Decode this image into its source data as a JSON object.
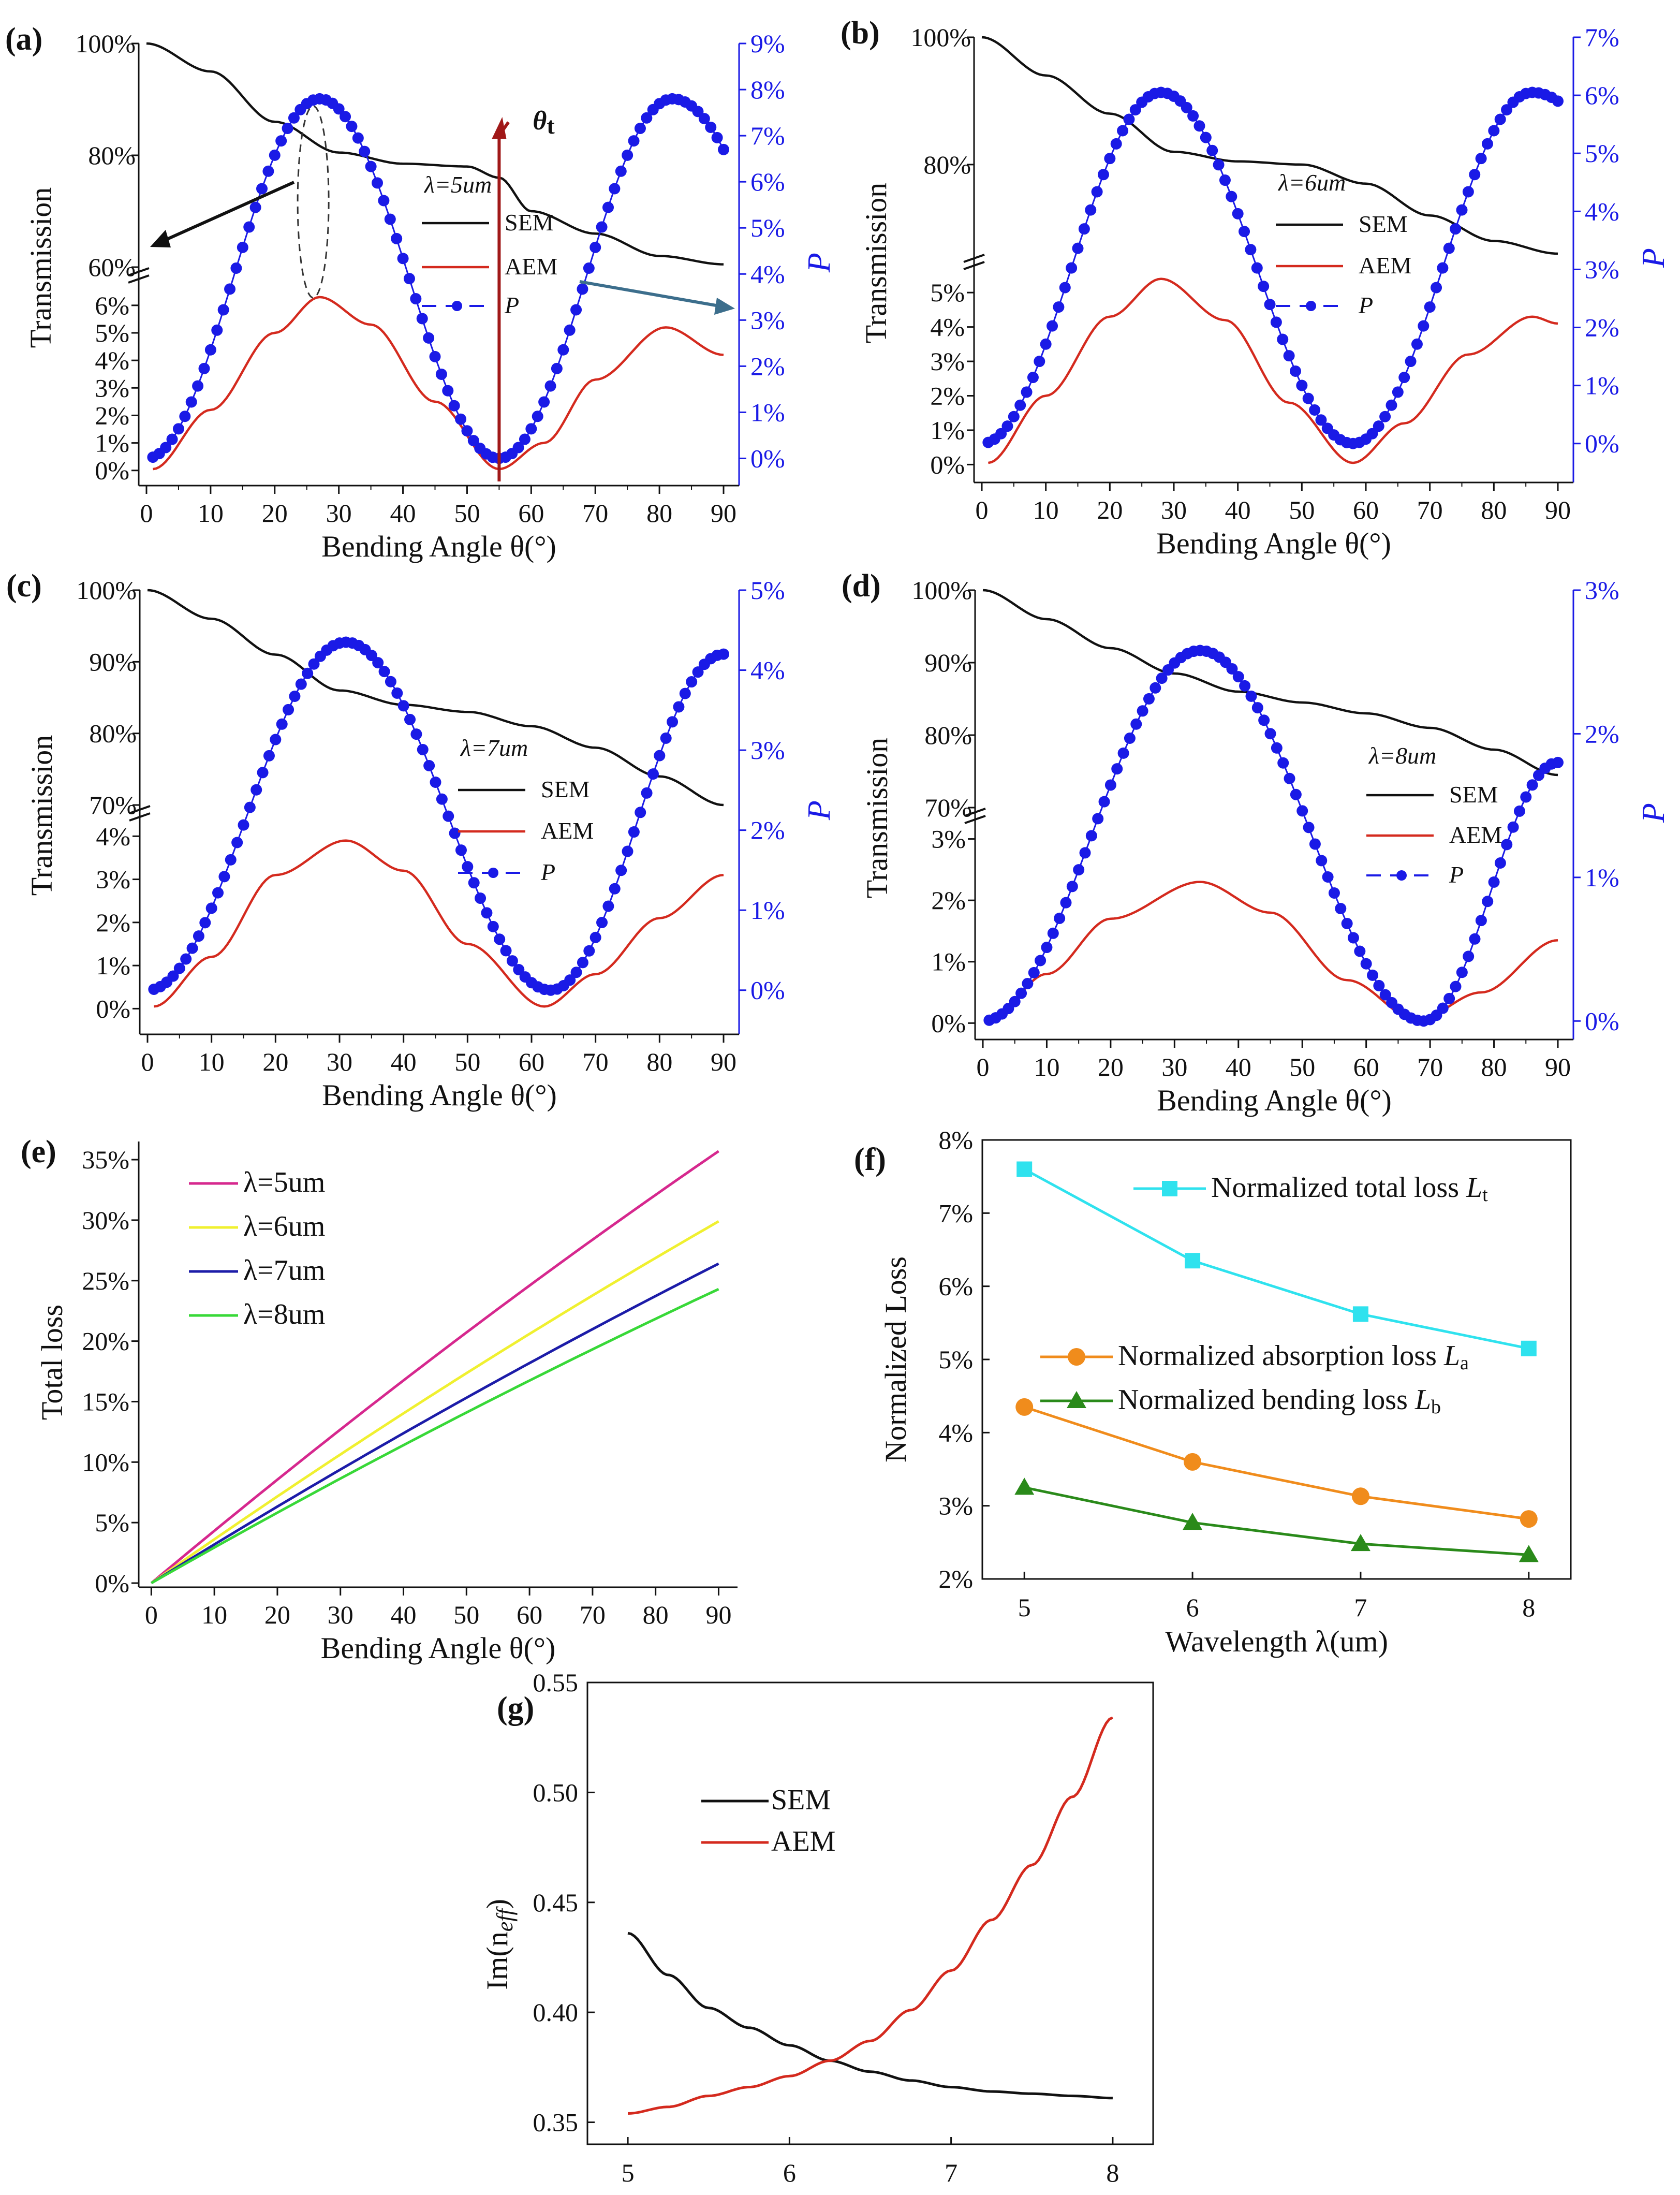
{
  "colors": {
    "sem": "#111111",
    "aem": "#d42a1e",
    "p": "#1a1ae6",
    "l5": "#d6288e",
    "l6": "#f0f030",
    "l7": "#1c1ca8",
    "l8": "#38d838",
    "total": "#2fe2ee",
    "absorp": "#f08c1c",
    "bend": "#2a8a1a",
    "arrowred": "#a01818",
    "arrowgray": "#3c6e8c"
  },
  "chart_data": [
    {
      "id": "a",
      "type": "line",
      "panel_label": "(a)",
      "wavelength_label": "λ=5um",
      "xlabel": "Bending Angle θ(°)",
      "ylabel": "Transmission",
      "y2label": "P",
      "xticks": [
        "0",
        "10",
        "20",
        "30",
        "40",
        "50",
        "60",
        "70",
        "80",
        "90"
      ],
      "yticks_upper": [
        "60%",
        "80%",
        "100%"
      ],
      "yticks_lower": [
        "0%",
        "1%",
        "2%",
        "3%",
        "4%",
        "5%",
        "6%"
      ],
      "y2ticks": [
        "0%",
        "1%",
        "2%",
        "3%",
        "4%",
        "5%",
        "6%",
        "7%",
        "8%",
        "9%"
      ],
      "y2range": [
        -0.5,
        9
      ],
      "legend": [
        "SEM",
        "AEM",
        "P"
      ],
      "theta_label": "θt",
      "series": {
        "SEM": [
          [
            0,
            100
          ],
          [
            10,
            95
          ],
          [
            20,
            86
          ],
          [
            30,
            80.5
          ],
          [
            40,
            78.5
          ],
          [
            50,
            78
          ],
          [
            55,
            76
          ],
          [
            60,
            70
          ],
          [
            70,
            66
          ],
          [
            80,
            62
          ],
          [
            90,
            60.5
          ]
        ],
        "AEM": [
          [
            1,
            0.05
          ],
          [
            10,
            2.2
          ],
          [
            20,
            5
          ],
          [
            27,
            6.3
          ],
          [
            35,
            5.3
          ],
          [
            45,
            2.5
          ],
          [
            55,
            0.05
          ],
          [
            62,
            1
          ],
          [
            70,
            3.3
          ],
          [
            81,
            5.2
          ],
          [
            90,
            4.2
          ]
        ],
        "P": {
          "min": 0,
          "max": 7.8,
          "peak1": 27,
          "trough": 55,
          "peak2": 82,
          "end": 90,
          "end_value": 6.7
        }
      }
    },
    {
      "id": "b",
      "type": "line",
      "panel_label": "(b)",
      "wavelength_label": "λ=6um",
      "xlabel": "Bending Angle θ(°)",
      "ylabel": "Transmission",
      "y2label": "P",
      "xticks": [
        "0",
        "10",
        "20",
        "30",
        "40",
        "50",
        "60",
        "70",
        "80",
        "90"
      ],
      "yticks_upper": [
        "80%",
        "100%"
      ],
      "yticks_lower": [
        "0%",
        "1%",
        "2%",
        "3%",
        "4%",
        "5%"
      ],
      "y2ticks": [
        "0%",
        "1%",
        "2%",
        "3%",
        "4%",
        "5%",
        "6%",
        "7%"
      ],
      "y2range": [
        -0.6,
        7
      ],
      "legend": [
        "SEM",
        "AEM",
        "P"
      ],
      "series": {
        "SEM": [
          [
            0,
            100
          ],
          [
            10,
            94
          ],
          [
            20,
            88
          ],
          [
            30,
            82
          ],
          [
            40,
            80.5
          ],
          [
            50,
            80
          ],
          [
            60,
            77
          ],
          [
            70,
            72
          ],
          [
            80,
            68
          ],
          [
            90,
            66
          ]
        ],
        "AEM": [
          [
            1,
            0.05
          ],
          [
            10,
            2
          ],
          [
            20,
            4.3
          ],
          [
            28,
            5.4
          ],
          [
            38,
            4.2
          ],
          [
            48,
            1.8
          ],
          [
            58,
            0.05
          ],
          [
            66,
            1.2
          ],
          [
            76,
            3.2
          ],
          [
            86,
            4.3
          ],
          [
            90,
            4.1
          ]
        ],
        "P": {
          "min": 0,
          "max": 6.05,
          "peak1": 28,
          "trough": 58,
          "peak2": 86,
          "end": 90,
          "end_value": 5.9
        }
      }
    },
    {
      "id": "c",
      "type": "line",
      "panel_label": "(c)",
      "wavelength_label": "λ=7um",
      "xlabel": "Bending Angle θ(°)",
      "ylabel": "Transmission",
      "y2label": "P",
      "xticks": [
        "0",
        "10",
        "20",
        "30",
        "40",
        "50",
        "60",
        "70",
        "80",
        "90"
      ],
      "yticks_upper": [
        "70%",
        "80%",
        "90%",
        "100%"
      ],
      "yticks_lower": [
        "0%",
        "1%",
        "2%",
        "3%",
        "4%"
      ],
      "y2ticks": [
        "0%",
        "1%",
        "2%",
        "3%",
        "4%",
        "5%"
      ],
      "y2range": [
        -0.5,
        5
      ],
      "legend": [
        "SEM",
        "AEM",
        "P"
      ],
      "series": {
        "SEM": [
          [
            0,
            100
          ],
          [
            10,
            96
          ],
          [
            20,
            91
          ],
          [
            30,
            86
          ],
          [
            40,
            84
          ],
          [
            50,
            83
          ],
          [
            60,
            81
          ],
          [
            70,
            78
          ],
          [
            80,
            74
          ],
          [
            90,
            70
          ]
        ],
        "AEM": [
          [
            1,
            0.05
          ],
          [
            10,
            1.2
          ],
          [
            20,
            3.1
          ],
          [
            31,
            3.9
          ],
          [
            40,
            3.2
          ],
          [
            50,
            1.5
          ],
          [
            62,
            0.05
          ],
          [
            70,
            0.8
          ],
          [
            80,
            2.1
          ],
          [
            90,
            3.1
          ]
        ],
        "P": {
          "min": 0,
          "max": 4.35,
          "peak1": 31,
          "trough": 63,
          "rise_to": 90,
          "end_value": 4.2
        }
      }
    },
    {
      "id": "d",
      "type": "line",
      "panel_label": "(d)",
      "wavelength_label": "λ=8um",
      "xlabel": "Bending Angle θ(°)",
      "ylabel": "Transmission",
      "y2label": "P",
      "xticks": [
        "0",
        "10",
        "20",
        "30",
        "40",
        "50",
        "60",
        "70",
        "80",
        "90"
      ],
      "yticks_upper": [
        "70%",
        "80%",
        "90%",
        "100%"
      ],
      "yticks_lower": [
        "0%",
        "1%",
        "2%",
        "3%"
      ],
      "y2ticks": [
        "0%",
        "1%",
        "2%",
        "3%"
      ],
      "y2range": [
        -0.1,
        3
      ],
      "legend": [
        "SEM",
        "AEM",
        "P"
      ],
      "series": {
        "SEM": [
          [
            0,
            100
          ],
          [
            10,
            96
          ],
          [
            20,
            92
          ],
          [
            30,
            88.5
          ],
          [
            40,
            86
          ],
          [
            50,
            84.5
          ],
          [
            60,
            83
          ],
          [
            70,
            81
          ],
          [
            80,
            78
          ],
          [
            90,
            74.5
          ]
        ],
        "AEM": [
          [
            1,
            0.05
          ],
          [
            10,
            0.8
          ],
          [
            20,
            1.7
          ],
          [
            34,
            2.3
          ],
          [
            45,
            1.8
          ],
          [
            57,
            0.7
          ],
          [
            68,
            0.05
          ],
          [
            78,
            0.5
          ],
          [
            90,
            1.35
          ]
        ],
        "P": {
          "min": 0,
          "max": 2.58,
          "peak1": 34,
          "trough": 69,
          "rise_to": 90,
          "end_value": 1.8
        }
      }
    },
    {
      "id": "e",
      "type": "line",
      "panel_label": "(e)",
      "xlabel": "Bending Angle θ(°)",
      "ylabel": "Total loss",
      "xticks": [
        "0",
        "10",
        "20",
        "30",
        "40",
        "50",
        "60",
        "70",
        "80",
        "90"
      ],
      "yticks": [
        "0%",
        "5%",
        "10%",
        "15%",
        "20%",
        "25%",
        "30%",
        "35%"
      ],
      "xlim": [
        -2,
        93
      ],
      "ylim": [
        0,
        36.5
      ],
      "series": [
        {
          "name": "λ=5um",
          "end": 35.7,
          "shape": 0.1
        },
        {
          "name": "λ=6um",
          "end": 29.9,
          "shape": 0.1
        },
        {
          "name": "λ=7um",
          "end": 26.4,
          "shape": 0.1
        },
        {
          "name": "λ=8um",
          "end": 24.3,
          "shape": 0.1
        }
      ]
    },
    {
      "id": "f",
      "type": "line",
      "panel_label": "(f)",
      "xlabel": "Wavelength λ(um)",
      "ylabel": "Normalized Loss",
      "xticks": [
        "5",
        "6",
        "7",
        "8"
      ],
      "yticks": [
        "2%",
        "3%",
        "4%",
        "5%",
        "6%",
        "7%",
        "8%"
      ],
      "xlim": [
        4.75,
        8.25
      ],
      "ylim": [
        2,
        8
      ],
      "x": [
        5,
        6,
        7,
        8
      ],
      "series": [
        {
          "name": "Normalized total loss ",
          "sub": "t",
          "letter": "L",
          "values": [
            7.6,
            6.35,
            5.62,
            5.15
          ],
          "marker": "square"
        },
        {
          "name": "Normalized absorption loss ",
          "sub": "a",
          "letter": "L",
          "values": [
            4.35,
            3.6,
            3.13,
            2.82
          ],
          "marker": "circle"
        },
        {
          "name": "Normalized bending loss ",
          "sub": "b",
          "letter": "L",
          "values": [
            3.25,
            2.77,
            2.48,
            2.33
          ],
          "marker": "triangle"
        }
      ]
    },
    {
      "id": "g",
      "type": "line",
      "panel_label": "(g)",
      "xlabel": "Wavelength λ(um)",
      "ylabel": "Im(n",
      "ylabel_sub": "eff",
      "ylabel_end": ")",
      "xticks": [
        "5",
        "6",
        "7",
        "8"
      ],
      "yticks": [
        "0.35",
        "0.40",
        "0.45",
        "0.50",
        "0.55"
      ],
      "xlim": [
        4.75,
        8.25
      ],
      "ylim": [
        0.34,
        0.55
      ],
      "series": [
        {
          "name": "SEM",
          "points": [
            [
              5,
              0.436
            ],
            [
              5.25,
              0.417
            ],
            [
              5.5,
              0.402
            ],
            [
              5.75,
              0.393
            ],
            [
              6,
              0.385
            ],
            [
              6.25,
              0.378
            ],
            [
              6.5,
              0.373
            ],
            [
              6.75,
              0.369
            ],
            [
              7,
              0.366
            ],
            [
              7.25,
              0.364
            ],
            [
              7.5,
              0.363
            ],
            [
              7.75,
              0.362
            ],
            [
              8,
              0.361
            ]
          ]
        },
        {
          "name": "AEM",
          "points": [
            [
              5,
              0.354
            ],
            [
              5.25,
              0.357
            ],
            [
              5.5,
              0.362
            ],
            [
              5.75,
              0.366
            ],
            [
              6,
              0.371
            ],
            [
              6.25,
              0.378
            ],
            [
              6.5,
              0.387
            ],
            [
              6.75,
              0.401
            ],
            [
              7,
              0.419
            ],
            [
              7.25,
              0.442
            ],
            [
              7.5,
              0.467
            ],
            [
              7.75,
              0.498
            ],
            [
              8,
              0.534
            ]
          ]
        }
      ]
    }
  ]
}
